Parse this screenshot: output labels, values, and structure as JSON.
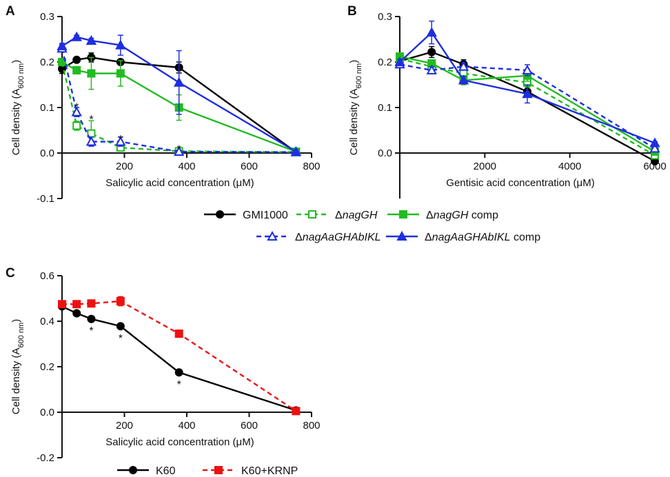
{
  "chart_data": [
    {
      "panel": "A",
      "type": "line",
      "xlabel": "Salicylic acid concentration  (μM)",
      "ylabel": "Cell density (A600 nm)",
      "ylabel_main": "Cell density (A",
      "ylabel_sub": "600 nm",
      "ylabel_close": ")",
      "xlim": [
        0,
        800
      ],
      "ylim": [
        -0.1,
        0.3
      ],
      "xticks": [
        200,
        400,
        600,
        800
      ],
      "xtick_labels": [
        "200",
        "400",
        "600",
        "800"
      ],
      "yticks": [
        -0.1,
        0.0,
        0.1,
        0.2,
        0.3
      ],
      "ytick_labels": [
        "-0.1",
        "0.0",
        "0.1",
        "0.2",
        "0.3"
      ],
      "series": [
        {
          "key": "GMI1000",
          "color": "#000000",
          "dash": "solid",
          "marker": "circle",
          "filled": true,
          "x": [
            0,
            46.9,
            93.8,
            187.5,
            375,
            750
          ],
          "y": [
            0.185,
            0.205,
            0.21,
            0.2,
            0.188,
            0.002
          ],
          "err": [
            0.01,
            0.005,
            0.01,
            0.004,
            0.012,
            0.003
          ]
        },
        {
          "key": "dnagGH",
          "color": "#22bb22",
          "dash": "dashed",
          "marker": "square",
          "filled": false,
          "x": [
            0,
            46.9,
            93.8,
            187.5,
            375,
            750
          ],
          "y": [
            0.2,
            0.06,
            0.043,
            0.012,
            0.004,
            0.002
          ],
          "err": [
            0.005,
            0.01,
            0.028,
            0.005,
            0.003,
            0.002
          ]
        },
        {
          "key": "dnagGH_comp",
          "color": "#22bb22",
          "dash": "solid",
          "marker": "square",
          "filled": true,
          "x": [
            0,
            46.9,
            93.8,
            187.5,
            375,
            750
          ],
          "y": [
            0.2,
            0.182,
            0.175,
            0.175,
            0.1,
            0.003
          ],
          "err": [
            0.006,
            0.008,
            0.035,
            0.028,
            0.028,
            0.003
          ]
        },
        {
          "key": "dnagAaGHAbIKL",
          "color": "#1f2ee0",
          "dash": "dashed",
          "marker": "triangle",
          "filled": false,
          "x": [
            0,
            46.9,
            93.8,
            187.5,
            375,
            750
          ],
          "y": [
            0.23,
            0.09,
            0.025,
            0.025,
            0.003,
            0.002
          ],
          "err": [
            0.008,
            0.01,
            0.01,
            0.01,
            0.003,
            0.002
          ]
        },
        {
          "key": "dnagAaGHAbIKL_comp",
          "color": "#1f2ee0",
          "dash": "solid",
          "marker": "triangle",
          "filled": true,
          "x": [
            0,
            46.9,
            93.8,
            187.5,
            375,
            750
          ],
          "y": [
            0.235,
            0.255,
            0.247,
            0.237,
            0.155,
            0.003
          ],
          "err": [
            0.006,
            0.004,
            0.005,
            0.022,
            0.07,
            0.003
          ]
        }
      ],
      "annotations": [
        {
          "text": "*",
          "x": 46.9,
          "y": 0.102
        },
        {
          "text": "*",
          "x": 93.8,
          "y": 0.075
        },
        {
          "text": "*",
          "x": 187.5,
          "y": 0.032
        },
        {
          "text": "*",
          "x": 375,
          "y": 0.01
        }
      ]
    },
    {
      "panel": "B",
      "type": "line",
      "xlabel": "Gentisic acid concentration  (μM)",
      "ylabel": "Cell density (A600 nm)",
      "ylabel_main": "Cell density (A",
      "ylabel_sub": "600 nm",
      "ylabel_close": ")",
      "xlim": [
        0,
        6000
      ],
      "ylim": [
        -0.1,
        0.3
      ],
      "xticks": [
        2000,
        4000,
        6000
      ],
      "xtick_labels": [
        "2000",
        "4000",
        "6000"
      ],
      "yticks": [
        0.0,
        0.1,
        0.2,
        0.3
      ],
      "ytick_labels": [
        "0.0",
        "0.1",
        "0.2",
        "0.3"
      ],
      "series": [
        {
          "key": "GMI1000",
          "color": "#000000",
          "dash": "solid",
          "marker": "circle",
          "filled": true,
          "x": [
            0,
            750,
            1500,
            3000,
            6000
          ],
          "y": [
            0.202,
            0.222,
            0.195,
            0.135,
            -0.018
          ],
          "err": [
            0.01,
            0.012,
            0.01,
            0.01,
            0.003
          ]
        },
        {
          "key": "dnagGH",
          "color": "#22bb22",
          "dash": "dashed",
          "marker": "square",
          "filled": false,
          "x": [
            0,
            750,
            1500,
            3000,
            6000
          ],
          "y": [
            0.207,
            0.19,
            0.175,
            0.155,
            -0.005
          ],
          "err": [
            0.006,
            0.008,
            0.008,
            0.01,
            0.003
          ]
        },
        {
          "key": "dnagGH_comp",
          "color": "#22bb22",
          "dash": "solid",
          "marker": "square",
          "filled": true,
          "x": [
            0,
            750,
            1500,
            3000,
            6000
          ],
          "y": [
            0.212,
            0.197,
            0.16,
            0.17,
            0.003
          ],
          "err": [
            0.008,
            0.008,
            0.01,
            0.012,
            0.003
          ]
        },
        {
          "key": "dnagAaGHAbIKL",
          "color": "#1f2ee0",
          "dash": "dashed",
          "marker": "triangle",
          "filled": false,
          "x": [
            0,
            750,
            1500,
            3000,
            6000
          ],
          "y": [
            0.195,
            0.182,
            0.19,
            0.182,
            0.01
          ],
          "err": [
            0.006,
            0.008,
            0.008,
            0.012,
            0.003
          ]
        },
        {
          "key": "dnagAaGHAbIKL_comp",
          "color": "#1f2ee0",
          "dash": "solid",
          "marker": "triangle",
          "filled": true,
          "x": [
            0,
            750,
            1500,
            3000,
            6000
          ],
          "y": [
            0.2,
            0.265,
            0.16,
            0.13,
            0.022
          ],
          "err": [
            0.006,
            0.025,
            0.008,
            0.02,
            0.003
          ]
        }
      ],
      "annotations": []
    },
    {
      "panel": "C",
      "type": "line",
      "xlabel": "Salicylic acid concentration  (μM)",
      "ylabel": "Cell density (A600 nm)",
      "ylabel_main": "Cell density (A",
      "ylabel_sub": "600 nm",
      "ylabel_close": ")",
      "xlim": [
        0,
        800
      ],
      "ylim": [
        -0.2,
        0.6
      ],
      "xticks": [
        200,
        400,
        600,
        800
      ],
      "xtick_labels": [
        "200",
        "400",
        "600",
        "800"
      ],
      "yticks": [
        -0.2,
        0.0,
        0.2,
        0.4,
        0.6
      ],
      "ytick_labels": [
        "-0.2",
        "0.0",
        "0.2",
        "0.4",
        "0.6"
      ],
      "series": [
        {
          "key": "K60",
          "color": "#000000",
          "dash": "solid",
          "marker": "circle",
          "filled": true,
          "x": [
            0,
            46.9,
            93.8,
            187.5,
            375,
            750
          ],
          "y": [
            0.465,
            0.435,
            0.41,
            0.378,
            0.175,
            0.008
          ],
          "err": [
            0.01,
            0.006,
            0.006,
            0.006,
            0.006,
            0.004
          ]
        },
        {
          "key": "K60_KRNP",
          "color": "#ee1111",
          "dash": "dashed",
          "marker": "square",
          "filled": true,
          "x": [
            0,
            46.9,
            93.8,
            187.5,
            375,
            750
          ],
          "y": [
            0.475,
            0.475,
            0.478,
            0.488,
            0.345,
            0.005
          ],
          "err": [
            0.008,
            0.006,
            0.006,
            0.02,
            0.015,
            0.004
          ]
        }
      ],
      "annotations": [
        {
          "text": "*",
          "x": 93.8,
          "y": 0.36
        },
        {
          "text": "*",
          "x": 187.5,
          "y": 0.328
        },
        {
          "text": "*",
          "x": 375,
          "y": 0.125
        }
      ]
    }
  ],
  "legend_top": {
    "items": [
      {
        "series": "GMI1000",
        "label": "GMI1000",
        "italic": "",
        "suffix": "",
        "color": "#000000",
        "dash": "solid",
        "marker": "circle",
        "filled": true
      },
      {
        "series": "dnagGH",
        "label": "Δ",
        "italic": "nagGH",
        "suffix": "",
        "color": "#22bb22",
        "dash": "dashed",
        "marker": "square",
        "filled": false
      },
      {
        "series": "dnagGH_comp",
        "label": "Δ",
        "italic": "nagGH",
        "suffix": " comp",
        "color": "#22bb22",
        "dash": "solid",
        "marker": "square",
        "filled": true
      },
      {
        "series": "dnagAaGHAbIKL",
        "label": "Δ",
        "italic": "nagAaGHAbIKL",
        "suffix": "",
        "color": "#1f2ee0",
        "dash": "dashed",
        "marker": "triangle",
        "filled": false
      },
      {
        "series": "dnagAaGHAbIKL_comp",
        "label": "Δ",
        "italic": "nagAaGHAbIKL",
        "suffix": " comp",
        "color": "#1f2ee0",
        "dash": "solid",
        "marker": "triangle",
        "filled": true
      }
    ]
  },
  "legend_bottom": {
    "items": [
      {
        "series": "K60",
        "label": "K60",
        "italic": "",
        "suffix": "",
        "color": "#000000",
        "dash": "solid",
        "marker": "circle",
        "filled": true
      },
      {
        "series": "K60_KRNP",
        "label": "K60+KRNP",
        "italic": "",
        "suffix": "",
        "color": "#ee1111",
        "dash": "dashed",
        "marker": "square",
        "filled": true
      }
    ]
  }
}
